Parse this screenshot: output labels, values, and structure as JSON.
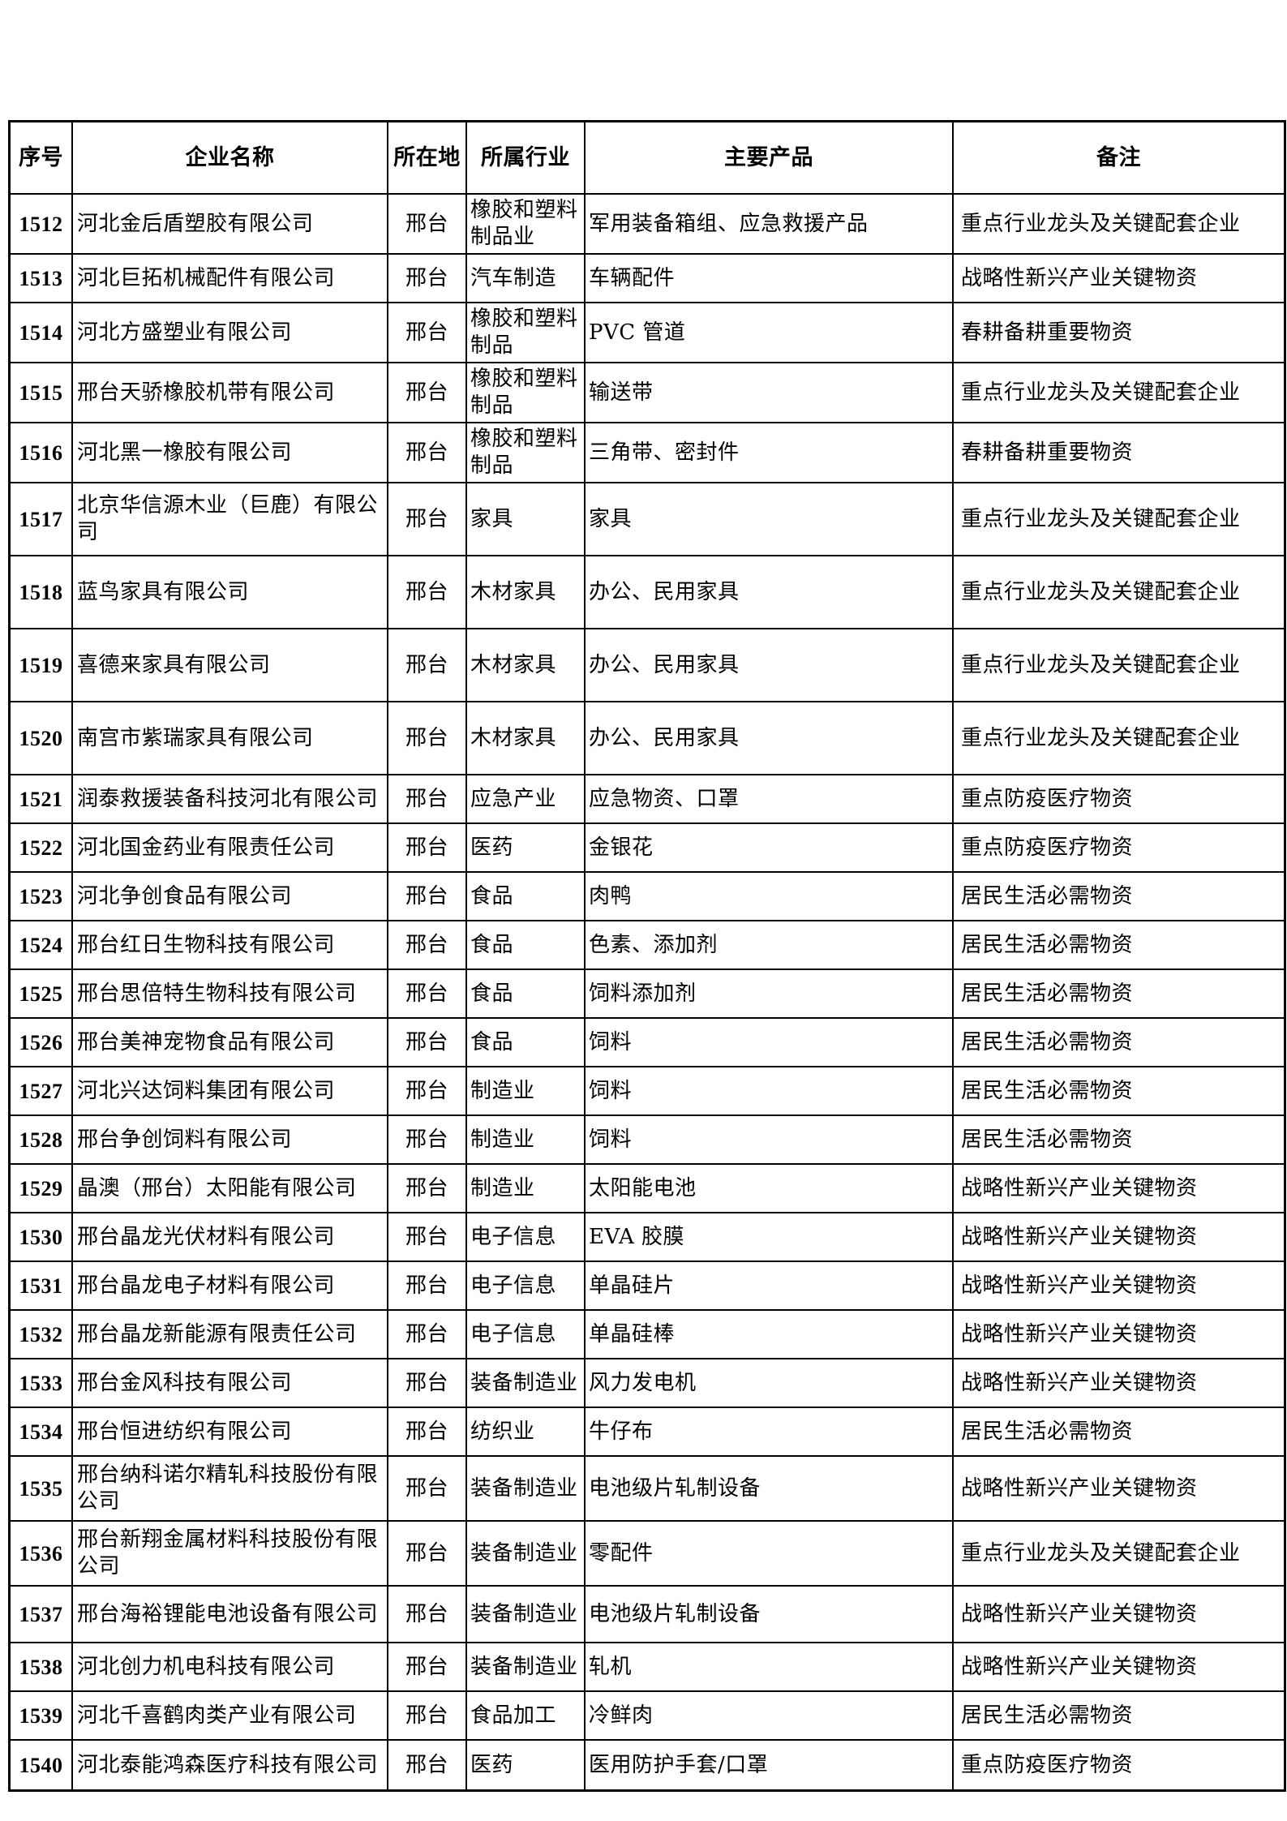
{
  "table": {
    "columns": [
      "序号",
      "企业名称",
      "所在地",
      "所属行业",
      "主要产品",
      "备注"
    ],
    "rows": [
      {
        "seq": "1512",
        "company": "河北金后盾塑胶有限公司",
        "location": "邢台",
        "industry": "橡胶和塑料制品业",
        "products": "军用装备箱组、应急救援产品",
        "remark": "重点行业龙头及关键配套企业"
      },
      {
        "seq": "1513",
        "company": "河北巨拓机械配件有限公司",
        "location": "邢台",
        "industry": "汽车制造",
        "products": "车辆配件",
        "remark": "战略性新兴产业关键物资"
      },
      {
        "seq": "1514",
        "company": "河北方盛塑业有限公司",
        "location": "邢台",
        "industry": "橡胶和塑料制品",
        "products": "PVC 管道",
        "remark": "春耕备耕重要物资"
      },
      {
        "seq": "1515",
        "company": "邢台天骄橡胶机带有限公司",
        "location": "邢台",
        "industry": "橡胶和塑料制品",
        "products": "输送带",
        "remark": "重点行业龙头及关键配套企业"
      },
      {
        "seq": "1516",
        "company": "河北黑一橡胶有限公司",
        "location": "邢台",
        "industry": "橡胶和塑料制品",
        "products": "三角带、密封件",
        "remark": "春耕备耕重要物资"
      },
      {
        "seq": "1517",
        "company": "北京华信源木业（巨鹿）有限公司",
        "location": "邢台",
        "industry": "家具",
        "products": "家具",
        "remark": "重点行业龙头及关键配套企业"
      },
      {
        "seq": "1518",
        "company": "蓝鸟家具有限公司",
        "location": "邢台",
        "industry": "木材家具",
        "products": "办公、民用家具",
        "remark": "重点行业龙头及关键配套企业"
      },
      {
        "seq": "1519",
        "company": "喜德来家具有限公司",
        "location": "邢台",
        "industry": "木材家具",
        "products": "办公、民用家具",
        "remark": "重点行业龙头及关键配套企业"
      },
      {
        "seq": "1520",
        "company": "南宫市紫瑞家具有限公司",
        "location": "邢台",
        "industry": "木材家具",
        "products": "办公、民用家具",
        "remark": "重点行业龙头及关键配套企业"
      },
      {
        "seq": "1521",
        "company": "润泰救援装备科技河北有限公司",
        "location": "邢台",
        "industry": "应急产业",
        "products": "应急物资、口罩",
        "remark": "重点防疫医疗物资"
      },
      {
        "seq": "1522",
        "company": "河北国金药业有限责任公司",
        "location": "邢台",
        "industry": "医药",
        "products": "金银花",
        "remark": "重点防疫医疗物资"
      },
      {
        "seq": "1523",
        "company": "河北争创食品有限公司",
        "location": "邢台",
        "industry": "食品",
        "products": "肉鸭",
        "remark": "居民生活必需物资"
      },
      {
        "seq": "1524",
        "company": "邢台红日生物科技有限公司",
        "location": "邢台",
        "industry": "食品",
        "products": "色素、添加剂",
        "remark": "居民生活必需物资"
      },
      {
        "seq": "1525",
        "company": "邢台思倍特生物科技有限公司",
        "location": "邢台",
        "industry": "食品",
        "products": "饲料添加剂",
        "remark": "居民生活必需物资"
      },
      {
        "seq": "1526",
        "company": "邢台美神宠物食品有限公司",
        "location": "邢台",
        "industry": "食品",
        "products": "饲料",
        "remark": "居民生活必需物资"
      },
      {
        "seq": "1527",
        "company": "河北兴达饲料集团有限公司",
        "location": "邢台",
        "industry": "制造业",
        "products": "饲料",
        "remark": "居民生活必需物资"
      },
      {
        "seq": "1528",
        "company": "邢台争创饲料有限公司",
        "location": "邢台",
        "industry": "制造业",
        "products": "饲料",
        "remark": "居民生活必需物资"
      },
      {
        "seq": "1529",
        "company": "晶澳（邢台）太阳能有限公司",
        "location": "邢台",
        "industry": "制造业",
        "products": "太阳能电池",
        "remark": "战略性新兴产业关键物资"
      },
      {
        "seq": "1530",
        "company": "邢台晶龙光伏材料有限公司",
        "location": "邢台",
        "industry": "电子信息",
        "products": "EVA 胶膜",
        "remark": "战略性新兴产业关键物资"
      },
      {
        "seq": "1531",
        "company": "邢台晶龙电子材料有限公司",
        "location": "邢台",
        "industry": "电子信息",
        "products": "单晶硅片",
        "remark": "战略性新兴产业关键物资"
      },
      {
        "seq": "1532",
        "company": "邢台晶龙新能源有限责任公司",
        "location": "邢台",
        "industry": "电子信息",
        "products": "单晶硅棒",
        "remark": "战略性新兴产业关键物资"
      },
      {
        "seq": "1533",
        "company": "邢台金风科技有限公司",
        "location": "邢台",
        "industry": "装备制造业",
        "products": "风力发电机",
        "remark": "战略性新兴产业关键物资"
      },
      {
        "seq": "1534",
        "company": "邢台恒进纺织有限公司",
        "location": "邢台",
        "industry": "纺织业",
        "products": "牛仔布",
        "remark": "居民生活必需物资"
      },
      {
        "seq": "1535",
        "company": "邢台纳科诺尔精轧科技股份有限公司",
        "location": "邢台",
        "industry": "装备制造业",
        "products": "电池级片轧制设备",
        "remark": "战略性新兴产业关键物资"
      },
      {
        "seq": "1536",
        "company": "邢台新翔金属材料科技股份有限公司",
        "location": "邢台",
        "industry": "装备制造业",
        "products": "零配件",
        "remark": "重点行业龙头及关键配套企业"
      },
      {
        "seq": "1537",
        "company": "邢台海裕锂能电池设备有限公司",
        "location": "邢台",
        "industry": "装备制造业",
        "products": "电池级片轧制设备",
        "remark": "战略性新兴产业关键物资"
      },
      {
        "seq": "1538",
        "company": "河北创力机电科技有限公司",
        "location": "邢台",
        "industry": "装备制造业",
        "products": "轧机",
        "remark": "战略性新兴产业关键物资"
      },
      {
        "seq": "1539",
        "company": "河北千喜鹤肉类产业有限公司",
        "location": "邢台",
        "industry": "食品加工",
        "products": "冷鲜肉",
        "remark": "居民生活必需物资"
      },
      {
        "seq": "1540",
        "company": "河北泰能鸿森医疗科技有限公司",
        "location": "邢台",
        "industry": "医药",
        "products": "医用防护手套/口罩",
        "remark": "重点防疫医疗物资"
      }
    ]
  }
}
